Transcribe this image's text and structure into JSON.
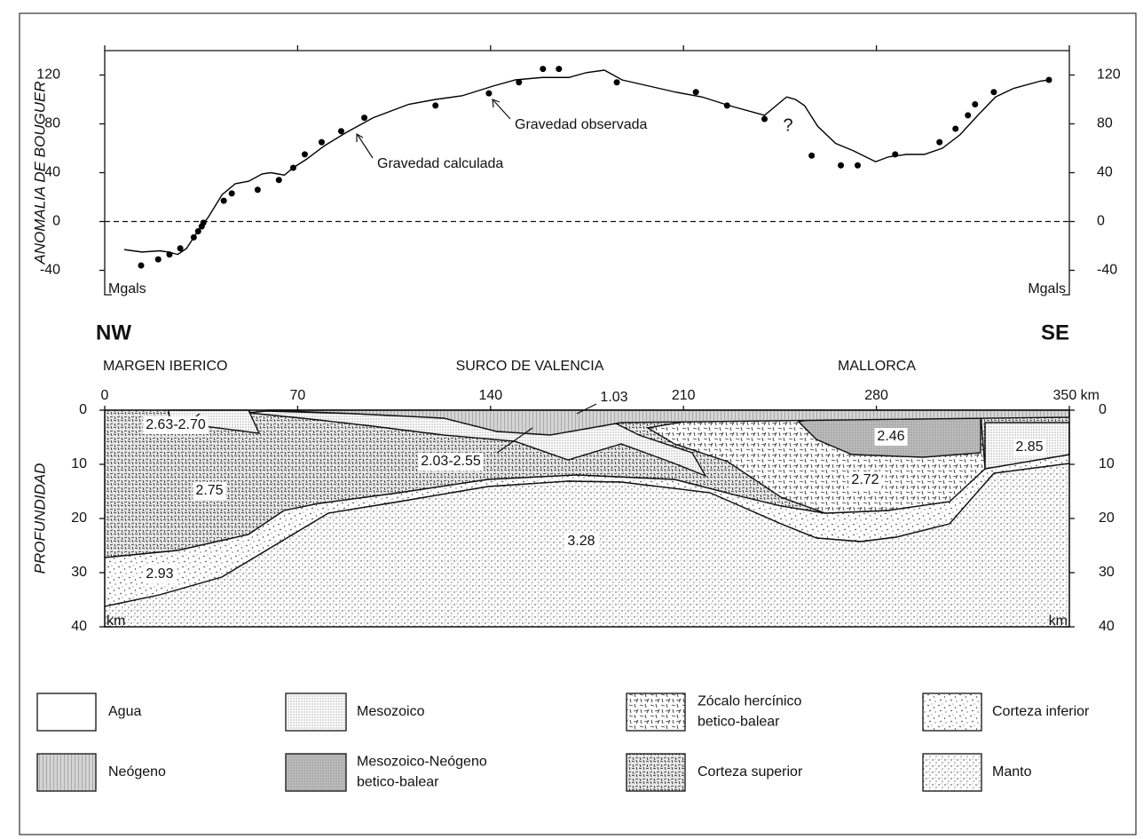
{
  "chart_data": {
    "type": "scatter-line",
    "ylabel": "ANOMALIA DE BOUGUER",
    "units_left": "Mgals",
    "units_right": "Mgals",
    "xlim": [
      0,
      350
    ],
    "ylim": [
      -60,
      140
    ],
    "yticks": [
      -40,
      0,
      40,
      80,
      120
    ],
    "annotation": "?",
    "series": [
      {
        "name": "Gravedad observada",
        "color": "#000000",
        "x": [
          13.2,
          19.4,
          23.5,
          27.4,
          32.3,
          33.9,
          35.2,
          35.8,
          43.2,
          46.1,
          55.5,
          63.2,
          68.4,
          72.6,
          78.7,
          85.8,
          94.2,
          120,
          139.4,
          150.3,
          159,
          164.8,
          185.8,
          214.5,
          225.8,
          239.4,
          256.5,
          267.1,
          273.2,
          286.8,
          302.9,
          308.7,
          313.2,
          315.8,
          322.6,
          342.6
        ],
        "values": [
          -36,
          -31,
          -27,
          -22,
          -13,
          -8,
          -4,
          -1,
          17,
          23,
          26,
          34,
          44,
          55,
          65,
          74,
          85,
          95,
          105,
          114,
          125,
          125,
          114,
          106,
          95,
          84,
          54,
          46,
          46,
          55,
          65,
          76,
          87,
          96,
          106,
          116
        ]
      },
      {
        "name": "Gravedad calculada",
        "color": "#000000",
        "x": [
          7.1,
          13.5,
          20,
          23.2,
          26.5,
          29.7,
          32.9,
          37.7,
          42.6,
          47.4,
          52.3,
          57.1,
          60.3,
          65.2,
          68.4,
          73.2,
          79.7,
          87.7,
          97.4,
          110.3,
          120,
          129.7,
          141,
          149,
          158.7,
          168.4,
          174.8,
          181.3,
          187.7,
          197.4,
          207.1,
          216.8,
          226.5,
          239.4,
          244.2,
          247.4,
          250.6,
          253.9,
          258.7,
          265.2,
          271.6,
          279.7,
          284.5,
          291,
          297.4,
          303.9,
          310.3,
          316.8,
          323.2,
          329.7,
          339.4,
          342.6
        ],
        "values": [
          -23,
          -25,
          -24,
          -25,
          -27,
          -22,
          -11,
          4,
          22,
          31,
          33,
          39,
          40,
          38,
          44,
          51,
          62,
          73,
          85,
          96,
          100,
          103,
          111,
          116,
          118,
          118,
          122,
          124,
          116,
          111,
          106,
          102,
          95,
          87,
          96,
          102,
          100,
          95,
          78,
          64,
          58,
          49,
          53,
          55,
          55,
          60,
          71,
          87,
          102,
          109,
          115,
          116
        ]
      }
    ]
  },
  "section": {
    "left_dir": "NW",
    "right_dir": "SE",
    "regions": [
      "MARGEN IBERICO",
      "SURCO DE VALENCIA",
      "MALLORCA"
    ],
    "xlim": [
      0,
      350
    ],
    "xticks": [
      0,
      70,
      140,
      210,
      280,
      {
        "value": 350,
        "label": "350 km"
      }
    ],
    "ylabel": "PROFUNDIDAD",
    "ylim": [
      0,
      40
    ],
    "yticks": [
      0,
      10,
      20,
      30,
      40
    ],
    "units_left": "km",
    "units_right": "km",
    "densities": [
      "2.63-2.70",
      "2.75",
      "2.93",
      "2.03-2.55",
      "1.03",
      "3.28",
      "2.46",
      "2.72",
      "2.85"
    ]
  },
  "legend": [
    {
      "lines": [
        "Agua"
      ]
    },
    {
      "lines": [
        "Mesozoico"
      ]
    },
    {
      "lines": [
        "Zócalo hercínico",
        "betico-balear"
      ]
    },
    {
      "lines": [
        "Corteza inferior"
      ]
    },
    {
      "lines": [
        "Neógeno"
      ]
    },
    {
      "lines": [
        "Mesozoico-Neógeno",
        "betico-balear"
      ]
    },
    {
      "lines": [
        "Corteza superior"
      ]
    },
    {
      "lines": [
        "Manto"
      ]
    }
  ]
}
